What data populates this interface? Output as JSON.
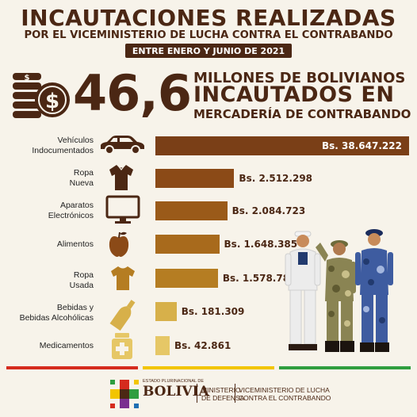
{
  "header": {
    "title": "INCAUTACIONES REALIZADAS",
    "subtitle": "POR EL VICEMINISTERIO DE LUCHA CONTRA EL CONTRABANDO",
    "date_range": "ENTRE ENERO Y JUNIO DE 2021"
  },
  "headline": {
    "number": "46,6",
    "line1": "MILLONES DE BOLIVIANOS",
    "line2": "INCAUTADOS EN",
    "line3": "MERCADERÍA DE CONTRABANDO"
  },
  "chart_data": {
    "type": "bar",
    "orientation": "horizontal",
    "categories": [
      [
        "Vehículos",
        "Indocumentados"
      ],
      [
        "Ropa",
        "Nueva"
      ],
      [
        "Aparatos",
        "Electrónicos"
      ],
      [
        "Alimentos"
      ],
      [
        "Ropa",
        "Usada"
      ],
      [
        "Bebidas y",
        "Bebidas Alcohólicas"
      ],
      [
        "Medicamentos"
      ]
    ],
    "values": [
      38647222,
      2512298,
      2084723,
      1648385,
      1578784,
      181309,
      42861
    ],
    "value_labels": [
      "Bs. 38.647.222",
      "Bs. 2.512.298",
      "Bs. 2.084.723",
      "Bs. 1.648.385",
      "Bs. 1.578.784",
      "Bs. 181.309",
      "Bs. 42.861"
    ],
    "icons": [
      "car-icon",
      "shirt-icon",
      "monitor-icon",
      "apple-icon",
      "tshirt-icon",
      "bottle-icon",
      "medicine-icon"
    ],
    "colors": [
      "#7a3f17",
      "#8b4a17",
      "#9a5a19",
      "#a86a1c",
      "#b57d22",
      "#d7b04a",
      "#e6c766"
    ]
  },
  "footer": {
    "colors": [
      "#d52b1e",
      "#f2c500",
      "#2f9e3f"
    ],
    "state_label": "ESTADO PLURINACIONAL DE",
    "country": "BOLIVIA",
    "ministry": [
      "MINISTERIO",
      "DE DEFENSA"
    ],
    "viceministry": [
      "VICEMINISTERIO DE LUCHA",
      "CONTRA EL CONTRABANDO"
    ]
  }
}
